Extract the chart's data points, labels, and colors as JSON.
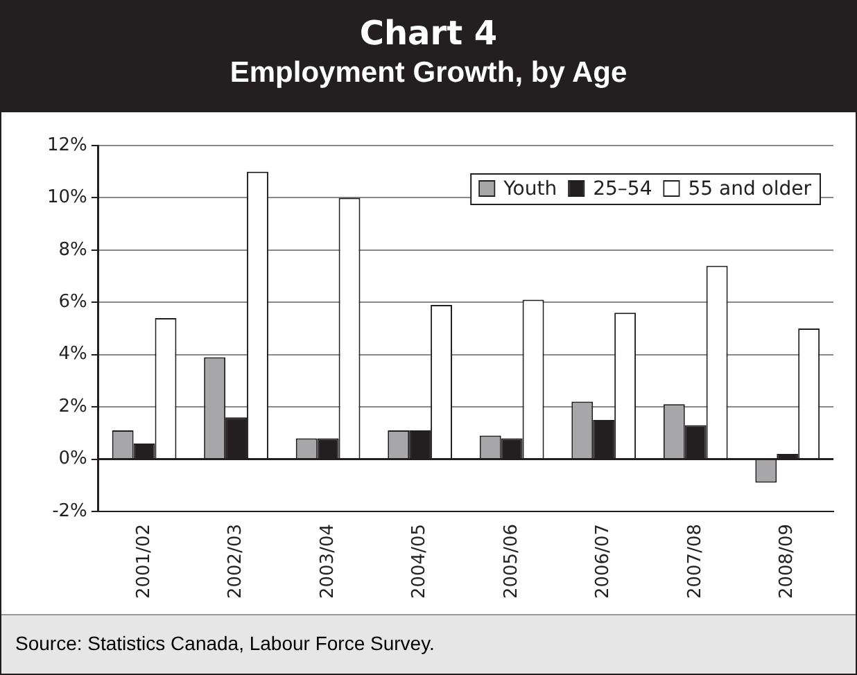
{
  "chart_data": {
    "type": "bar",
    "title": "Chart 4",
    "subtitle": "Employment Growth, by Age",
    "categories": [
      "2001/02",
      "2002/03",
      "2003/04",
      "2004/05",
      "2005/06",
      "2006/07",
      "2007/08",
      "2008/09"
    ],
    "series": [
      {
        "name": "Youth",
        "color": "#a7a7a9",
        "values": [
          1.1,
          3.9,
          0.8,
          1.1,
          0.9,
          2.2,
          2.1,
          -0.9
        ]
      },
      {
        "name": "25–54",
        "color": "#231f20",
        "values": [
          0.6,
          1.6,
          0.8,
          1.1,
          0.8,
          1.5,
          1.3,
          0.2
        ]
      },
      {
        "name": "55 and older",
        "color": "#ffffff",
        "values": [
          5.4,
          11.0,
          10.0,
          5.9,
          6.1,
          5.6,
          7.4,
          5.0
        ]
      }
    ],
    "ylim": [
      -2,
      12
    ],
    "yticks": [
      {
        "value": -2,
        "label": "-2%"
      },
      {
        "value": 0,
        "label": "0%"
      },
      {
        "value": 2,
        "label": "2%"
      },
      {
        "value": 4,
        "label": "4%"
      },
      {
        "value": 6,
        "label": "6%"
      },
      {
        "value": 8,
        "label": "8%"
      },
      {
        "value": 10,
        "label": "10%"
      },
      {
        "value": 12,
        "label": "12%"
      }
    ],
    "grid": "y",
    "legend": "top right",
    "annotations": [
      "Source: Statistics Canada, Labour Force Survey."
    ]
  }
}
